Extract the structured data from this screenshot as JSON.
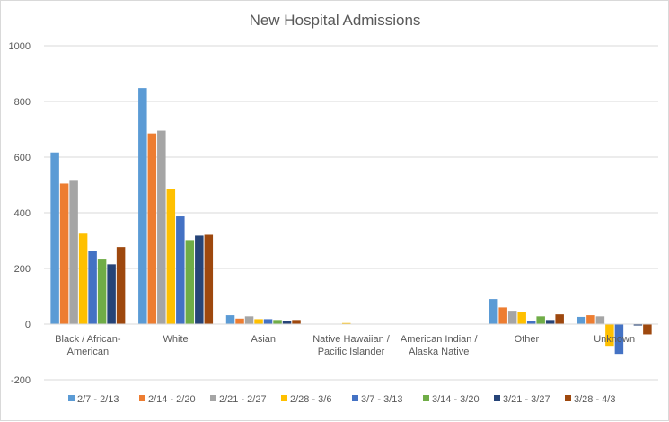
{
  "chart_data": {
    "type": "bar",
    "title": "New Hospital Admissions",
    "xlabel": "",
    "ylabel": "",
    "ylim": [
      -200,
      1000
    ],
    "yticks": [
      -200,
      0,
      200,
      400,
      600,
      800,
      1000
    ],
    "grid": true,
    "legend_position": "bottom",
    "categories": [
      [
        "Black / African-",
        "American"
      ],
      [
        "White"
      ],
      [
        "Asian"
      ],
      [
        "Native Hawaiian /",
        "Pacific Islander"
      ],
      [
        "American Indian /",
        "Alaska Native"
      ],
      [
        "Other"
      ],
      [
        "Unknown"
      ]
    ],
    "series": [
      {
        "name": "2/7 - 2/13",
        "color": "#5B9BD5",
        "values": [
          617,
          848,
          32,
          0,
          0,
          90,
          26
        ]
      },
      {
        "name": "2/14 - 2/20",
        "color": "#ED7D31",
        "values": [
          505,
          685,
          20,
          0,
          0,
          60,
          32
        ]
      },
      {
        "name": "2/21 - 2/27",
        "color": "#A5A5A5",
        "values": [
          515,
          695,
          28,
          0,
          0,
          48,
          28
        ]
      },
      {
        "name": "2/28 - 3/6",
        "color": "#FFC000",
        "values": [
          325,
          487,
          18,
          4,
          0,
          45,
          -78
        ]
      },
      {
        "name": "3/7 - 3/13",
        "color": "#4472C4",
        "values": [
          263,
          387,
          18,
          0,
          0,
          12,
          -107
        ]
      },
      {
        "name": "3/14 - 3/20",
        "color": "#70AD47",
        "values": [
          232,
          302,
          15,
          0,
          0,
          28,
          0
        ]
      },
      {
        "name": "3/21 - 3/27",
        "color": "#264478",
        "values": [
          215,
          318,
          12,
          0,
          0,
          15,
          -5
        ]
      },
      {
        "name": "3/28 - 4/3",
        "color": "#9E480E",
        "values": [
          277,
          321,
          15,
          0,
          0,
          35,
          -37
        ]
      }
    ]
  }
}
